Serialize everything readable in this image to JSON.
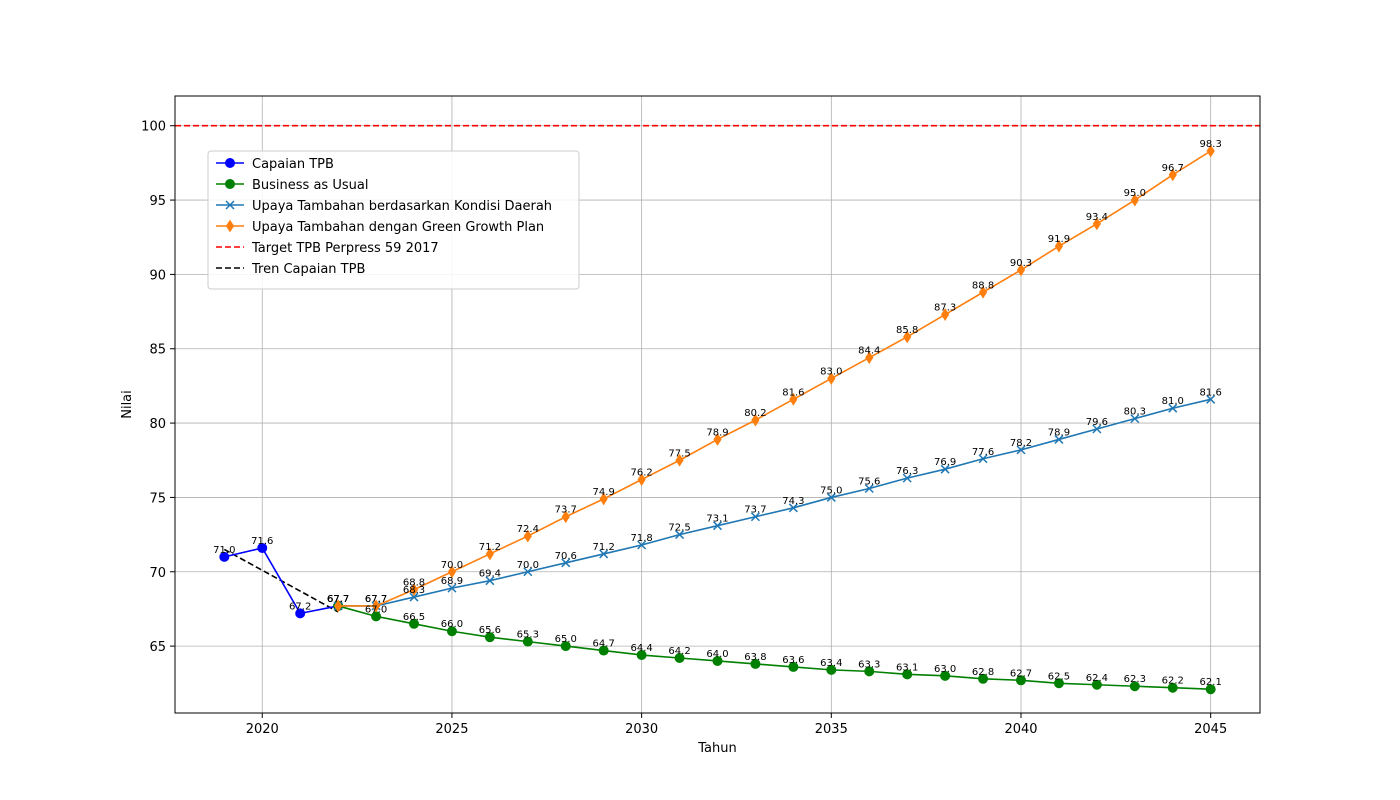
{
  "chart_data": {
    "type": "line",
    "title": "",
    "xlabel": "Tahun",
    "ylabel": "Nilai",
    "xlim": [
      2017.7,
      2046.3
    ],
    "ylim": [
      60.5,
      102
    ],
    "xticks": [
      2020,
      2025,
      2030,
      2035,
      2040,
      2045
    ],
    "yticks": [
      65,
      70,
      75,
      80,
      85,
      90,
      95,
      100
    ],
    "grid": true,
    "legend_position": "upper-left",
    "series": [
      {
        "name": "Capaian TPB",
        "color": "#0000ff",
        "marker": "circle",
        "linestyle": "solid",
        "x": [
          2019,
          2020,
          2021,
          2022
        ],
        "values": [
          71.0,
          71.6,
          67.2,
          67.7
        ],
        "labels": [
          "71.0",
          "71.6",
          "67.2",
          "67.7"
        ]
      },
      {
        "name": "Business as Usual",
        "color": "#008000",
        "marker": "circle",
        "linestyle": "solid",
        "x": [
          2022,
          2023,
          2024,
          2025,
          2026,
          2027,
          2028,
          2029,
          2030,
          2031,
          2032,
          2033,
          2034,
          2035,
          2036,
          2037,
          2038,
          2039,
          2040,
          2041,
          2042,
          2043,
          2044,
          2045
        ],
        "values": [
          67.7,
          67.0,
          66.5,
          66.0,
          65.6,
          65.3,
          65.0,
          64.7,
          64.4,
          64.2,
          64.0,
          63.8,
          63.6,
          63.4,
          63.3,
          63.1,
          63.0,
          62.8,
          62.7,
          62.5,
          62.4,
          62.3,
          62.2,
          62.1
        ],
        "labels": [
          "67.7",
          "67.0",
          "66.5",
          "66.0",
          "65.6",
          "65.3",
          "65.0",
          "64.7",
          "64.4",
          "64.2",
          "64.0",
          "63.8",
          "63.6",
          "63.4",
          "63.3",
          "63.1",
          "63.0",
          "62.8",
          "62.7",
          "62.5",
          "62.4",
          "62.3",
          "62.2",
          "62.1"
        ]
      },
      {
        "name": "Upaya Tambahan berdasarkan Kondisi Daerah",
        "color": "#1f77b4",
        "marker": "x",
        "linestyle": "solid",
        "x": [
          2022,
          2023,
          2024,
          2025,
          2026,
          2027,
          2028,
          2029,
          2030,
          2031,
          2032,
          2033,
          2034,
          2035,
          2036,
          2037,
          2038,
          2039,
          2040,
          2041,
          2042,
          2043,
          2044,
          2045
        ],
        "values": [
          67.7,
          67.7,
          68.3,
          68.9,
          69.4,
          70.0,
          70.6,
          71.2,
          71.8,
          72.5,
          73.1,
          73.7,
          74.3,
          75.0,
          75.6,
          76.3,
          76.9,
          77.6,
          78.2,
          78.9,
          79.6,
          80.3,
          81.0,
          81.6
        ],
        "labels": [
          "67.7",
          "67.7",
          "68.3",
          "68.9",
          "69.4",
          "70.0",
          "70.6",
          "71.2",
          "71.8",
          "72.5",
          "73.1",
          "73.7",
          "74.3",
          "75.0",
          "75.6",
          "76.3",
          "76.9",
          "77.6",
          "78.2",
          "78.9",
          "79.6",
          "80.3",
          "81.0",
          "81.6"
        ]
      },
      {
        "name": "Upaya Tambahan dengan Green Growth Plan",
        "color": "#ff7f0e",
        "marker": "diamond",
        "linestyle": "solid",
        "x": [
          2022,
          2023,
          2024,
          2025,
          2026,
          2027,
          2028,
          2029,
          2030,
          2031,
          2032,
          2033,
          2034,
          2035,
          2036,
          2037,
          2038,
          2039,
          2040,
          2041,
          2042,
          2043,
          2044,
          2045
        ],
        "values": [
          67.7,
          67.7,
          68.8,
          70.0,
          71.2,
          72.4,
          73.7,
          74.9,
          76.2,
          77.5,
          78.9,
          80.2,
          81.6,
          83.0,
          84.4,
          85.8,
          87.3,
          88.8,
          90.3,
          91.9,
          93.4,
          95.0,
          96.7,
          98.3
        ],
        "labels": [
          "67.7",
          "67.7",
          "68.8",
          "70.0",
          "71.2",
          "72.4",
          "73.7",
          "74.9",
          "76.2",
          "77.5",
          "78.9",
          "80.2",
          "81.6",
          "83.0",
          "84.4",
          "85.8",
          "87.3",
          "88.8",
          "90.3",
          "91.9",
          "93.4",
          "95.0",
          "96.7",
          "98.3"
        ]
      },
      {
        "name": "Target TPB Perpress 59 2017",
        "color": "#ff0000",
        "marker": "none",
        "linestyle": "dashed",
        "type": "hline",
        "values": [
          100
        ]
      },
      {
        "name": "Tren Capaian TPB",
        "color": "#000000",
        "marker": "none",
        "linestyle": "dashed",
        "x": [
          2019,
          2022
        ],
        "values": [
          71.5,
          67.3
        ]
      }
    ]
  }
}
